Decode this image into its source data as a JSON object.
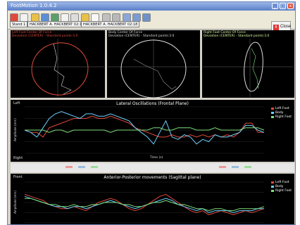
{
  "window": {
    "title": "FootMotion 1.0.4.2",
    "close_label": "Close"
  },
  "tabs": [
    {
      "label": "Stand 1"
    },
    {
      "label": "HACKBERT A. HACKBERT 02:17"
    },
    {
      "label": "HACKBERT A. HACKBERT 02:18"
    }
  ],
  "ellipse_panels": [
    {
      "title": "Left Foot Center Of Force",
      "subtitle": "Deviation (CENTER) - Standard points:3.0",
      "color": "#e04a3c"
    },
    {
      "title": "Body Center Of Force",
      "subtitle": "Deviation (CENTER) - Standard points:3.0",
      "color": "#dddddd"
    },
    {
      "title": "Right Foot Center Of Force",
      "subtitle": "Deviation (CENTER) - Standard points:3.0",
      "color": "#ddffaa"
    }
  ],
  "lateral": {
    "title": "Lateral Oscillations (Frontal Plane)",
    "left_label": "Left",
    "right_label": "Right",
    "ylabel": "Amplitude (mm)",
    "xlabel": "Time (s)",
    "legend": [
      {
        "name": "Left Foot",
        "color": "#e04a3c"
      },
      {
        "name": "Body",
        "color": "#6ed0ff"
      },
      {
        "name": "Right Foot",
        "color": "#7ee07e"
      }
    ]
  },
  "sagittal": {
    "title": "Anterior-Posterior movements (Sagittal plane)",
    "front_label": "Front",
    "ylabel": "Amplitude (mm)",
    "legend": [
      {
        "name": "Left Foot",
        "color": "#e04a3c"
      },
      {
        "name": "Body",
        "color": "#6ed0ff"
      },
      {
        "name": "Right Foot",
        "color": "#7ee07e"
      }
    ]
  },
  "chart_data": [
    {
      "type": "line",
      "title": "Lateral Oscillations (Frontal Plane)",
      "ylabel": "Amplitude (mm)",
      "xlabel": "Time (s)",
      "x": [
        0,
        1,
        2,
        3,
        4,
        5,
        6,
        7,
        8,
        9,
        10,
        11,
        12,
        13,
        14,
        15,
        16,
        17,
        18,
        19,
        20,
        21,
        22,
        23,
        24,
        25,
        26,
        27,
        28,
        29,
        30,
        31,
        32,
        33,
        34,
        35,
        36,
        37,
        38,
        39
      ],
      "ylim": [
        -10,
        10
      ],
      "series": [
        {
          "name": "Left Foot",
          "values": [
            0,
            -1,
            -1,
            -3,
            1,
            2,
            3,
            4,
            5,
            5,
            5,
            6,
            5,
            5,
            6,
            5,
            4,
            3,
            1,
            0,
            -1,
            -2,
            -3,
            -3,
            -2,
            -3,
            -3,
            -2,
            -3,
            -2,
            -3,
            -2,
            -3,
            -2,
            -3,
            -1,
            3,
            3,
            -1,
            -1
          ]
        },
        {
          "name": "Body",
          "values": [
            0,
            -1,
            -3,
            1,
            5,
            7,
            8,
            7,
            6,
            5,
            7,
            7,
            6,
            6,
            7,
            6,
            5,
            4,
            1,
            -1,
            -3,
            -6,
            -1,
            4,
            -3,
            -4,
            -2,
            -3,
            -6,
            -4,
            -5,
            -2,
            -3,
            -3,
            -2,
            -1,
            2,
            2,
            0,
            -1
          ]
        },
        {
          "name": "Right Foot",
          "values": [
            0,
            0,
            0,
            0,
            -1,
            0,
            0,
            -1,
            0,
            0,
            0,
            0,
            0,
            0,
            -1,
            0,
            0,
            0,
            0,
            0,
            0,
            1,
            1,
            0,
            0,
            1,
            1,
            1,
            0,
            0,
            0,
            1,
            0,
            0,
            0,
            0,
            1,
            1,
            1,
            0
          ]
        }
      ]
    },
    {
      "type": "line",
      "title": "Anterior-Posterior movements (Sagittal plane)",
      "ylabel": "Amplitude (mm)",
      "x": [
        0,
        1,
        2,
        3,
        4,
        5,
        6,
        7,
        8,
        9,
        10,
        11,
        12,
        13,
        14,
        15,
        16,
        17,
        18,
        19,
        20,
        21,
        22,
        23,
        24,
        25,
        26,
        27,
        28,
        29,
        30,
        31,
        32,
        33,
        34,
        35,
        36,
        37,
        38,
        39
      ],
      "ylim": [
        -10,
        10
      ],
      "series": [
        {
          "name": "Left Foot",
          "values": [
            4,
            3,
            2,
            1,
            -1,
            -2,
            -3,
            -3,
            -2,
            -3,
            -4,
            -2,
            0,
            1,
            2,
            1,
            -1,
            -3,
            -4,
            -3,
            -1,
            1,
            3,
            4,
            2,
            0,
            -2,
            -4,
            -5,
            -4,
            -6,
            -5,
            -4,
            -5,
            -6,
            -5,
            -4,
            -5,
            -4,
            -3
          ]
        },
        {
          "name": "Body",
          "values": [
            3,
            2,
            1,
            0,
            -1,
            -2,
            -2,
            -3,
            -2,
            -2,
            -3,
            -2,
            -1,
            0,
            1,
            0,
            -1,
            -2,
            -3,
            -2,
            -1,
            0,
            1,
            2,
            1,
            -1,
            -2,
            -3,
            -4,
            -3,
            -5,
            -4,
            -4,
            -4,
            -5,
            -4,
            -4,
            -4,
            -3,
            -3
          ]
        },
        {
          "name": "Right Foot",
          "values": [
            2,
            2,
            1,
            0,
            -1,
            -1,
            -2,
            -2,
            -1,
            -2,
            -2,
            -1,
            -1,
            0,
            0,
            0,
            -1,
            -1,
            -2,
            -2,
            -1,
            0,
            0,
            1,
            0,
            -1,
            -1,
            -2,
            -3,
            -3,
            -4,
            -3,
            -3,
            -4,
            -4,
            -3,
            -3,
            -3,
            -3,
            -2
          ]
        }
      ]
    }
  ]
}
